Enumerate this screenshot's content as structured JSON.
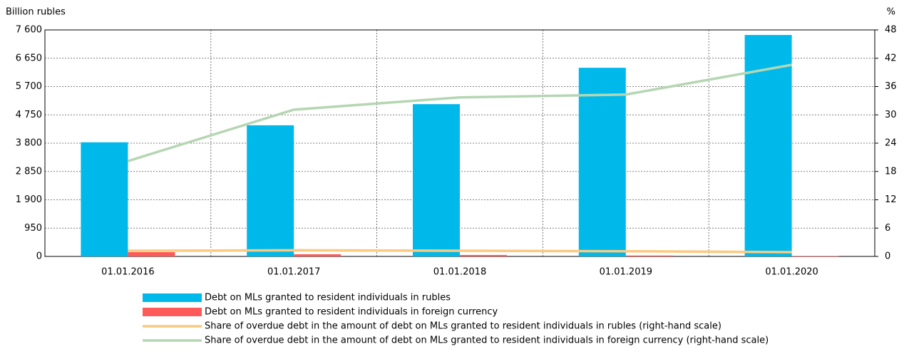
{
  "chart_data": {
    "type": "bar",
    "y_label": "Billion rubles",
    "y2_label": "%",
    "categories": [
      "01.01.2016",
      "01.01.2017",
      "01.01.2018",
      "01.01.2019",
      "01.01.2020"
    ],
    "ylim": [
      0,
      7600
    ],
    "yticks": [
      0,
      950,
      {
        "value": 1900,
        "label": "1 900"
      },
      {
        "value": 2850,
        "label": "2 850"
      },
      {
        "value": 3800,
        "label": "3 800"
      },
      {
        "value": 4750,
        "label": "4 750"
      },
      {
        "value": 5700,
        "label": "5 700"
      },
      {
        "value": 6650,
        "label": "6 650"
      },
      {
        "value": 7600,
        "label": "7 600"
      }
    ],
    "y2lim": [
      0,
      48
    ],
    "y2ticks": [
      0,
      6,
      12,
      18,
      24,
      30,
      36,
      42,
      48
    ],
    "grid": true,
    "series": [
      {
        "name": "Debt on MLs granted to resident individuals in rubles",
        "type": "bar",
        "color": "#00b9eb",
        "values": [
          3830,
          4400,
          5110,
          6330,
          7430
        ]
      },
      {
        "name": "Debt on MLs granted to resident individuals in foreign currency",
        "type": "bar",
        "color": "#ff5a5a",
        "values": [
          143,
          72,
          48,
          30,
          15
        ]
      },
      {
        "name": "Share of overdue debt in the amount of debt on MLs granted to resident individuals in rubles (right-hand scale)",
        "type": "line",
        "axis": "y2",
        "color": "#fcc97e",
        "values": [
          1.2,
          1.3,
          1.2,
          1.1,
          0.9
        ]
      },
      {
        "name": "Share of overdue debt in the amount of debt on MLs granted to resident individuals in foreign currency (right-hand scale)",
        "type": "line",
        "axis": "y2",
        "color": "#b5d6b2",
        "values": [
          20.2,
          31.1,
          33.7,
          34.3,
          40.6
        ]
      }
    ]
  }
}
